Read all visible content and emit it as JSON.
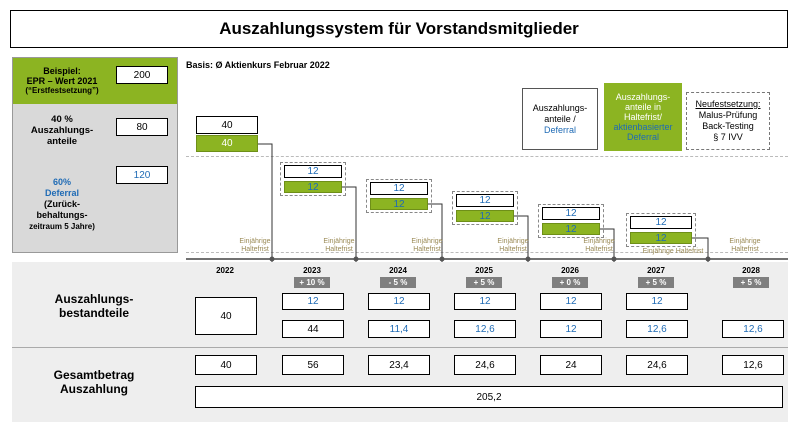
{
  "title": "Auszahlungssystem für Vorstandsmitglieder",
  "basis": "Basis: Ø Aktienkurs Februar 2022",
  "example": {
    "label_lines": [
      "Beispiel:",
      "EPR – Wert 2021",
      "(“Erstfestsetzung”)"
    ],
    "value": "200"
  },
  "payout_share": {
    "label_lines": [
      "40 %",
      "Auszahlungs-",
      "anteile"
    ],
    "value": "80"
  },
  "deferral": {
    "label_lines": [
      "60%",
      "Deferral",
      "(Zurück-",
      "behaltungs-",
      "zeitraum 5 Jahre)"
    ],
    "value": "120"
  },
  "legend": {
    "white_lines": [
      "Auszahlungs-",
      "anteile /"
    ],
    "white_blue": "Deferral",
    "green_lines": [
      "Auszahlungs-",
      "anteile in",
      "Haltefrist/"
    ],
    "green_blue_lines": [
      "aktienbasierter",
      "Deferral"
    ],
    "reset_title": "Neufestsetzung:",
    "reset_lines": [
      "Malus-Prüfung",
      "Back-Testing",
      "§ 7 IVV"
    ]
  },
  "upper_values": {
    "first_white": "40",
    "first_green": "40",
    "white": "12",
    "green": "12"
  },
  "haltefrist_lines": [
    "Einjährige",
    "Haltefrist"
  ],
  "years": [
    "2022",
    "2023",
    "2024",
    "2025",
    "2026",
    "2027",
    "2028"
  ],
  "changes": [
    "+ 10 %",
    "- 5 %",
    "+ 5 %",
    "+ 0 %",
    "+ 5 %",
    "+ 5 %"
  ],
  "components_label": [
    "Auszahlungs-",
    "bestandteile"
  ],
  "components_2022": "40",
  "components_top": [
    "12",
    "12",
    "12",
    "12",
    "12"
  ],
  "components_bottom": [
    "44",
    "11,4",
    "12,6",
    "12",
    "12,6",
    "12,6"
  ],
  "total_label": [
    "Gesamtbetrag",
    "Auszahlung"
  ],
  "totals": [
    "40",
    "56",
    "23,4",
    "24,6",
    "24",
    "24,6",
    "12,6"
  ],
  "grand_total": "205,2"
}
